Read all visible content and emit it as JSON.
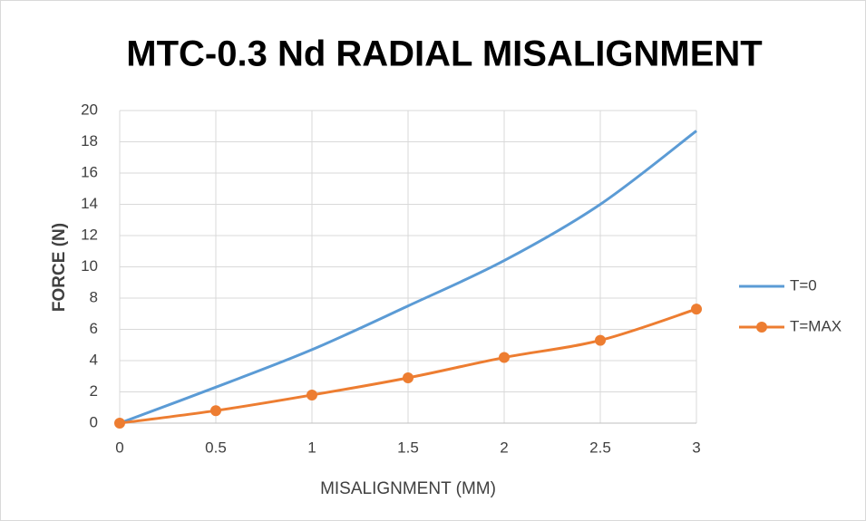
{
  "chart_data": {
    "type": "line",
    "title": "MTC-0.3 Nd RADIAL MISALIGNMENT",
    "x_label": "MISALIGNMENT  (MM)",
    "y_label": "FORCE (N)",
    "x": [
      0,
      0.5,
      1,
      1.5,
      2,
      2.5,
      3
    ],
    "series": [
      {
        "name": "T=0",
        "color": "#5b9bd5",
        "markers": false,
        "values": [
          0,
          2.3,
          4.7,
          7.5,
          10.4,
          14.0,
          18.7
        ]
      },
      {
        "name": "T=MAX",
        "color": "#ed7d31",
        "markers": true,
        "values": [
          0,
          0.8,
          1.8,
          2.9,
          4.2,
          5.3,
          7.3
        ]
      }
    ],
    "xlim": [
      0,
      3
    ],
    "xticks": [
      0,
      0.5,
      1,
      1.5,
      2,
      2.5,
      3
    ],
    "ylim": [
      0,
      20
    ],
    "yticks": [
      0,
      2,
      4,
      6,
      8,
      10,
      12,
      14,
      16,
      18,
      20
    ],
    "grid": true,
    "legend": "right",
    "smooth": true
  }
}
